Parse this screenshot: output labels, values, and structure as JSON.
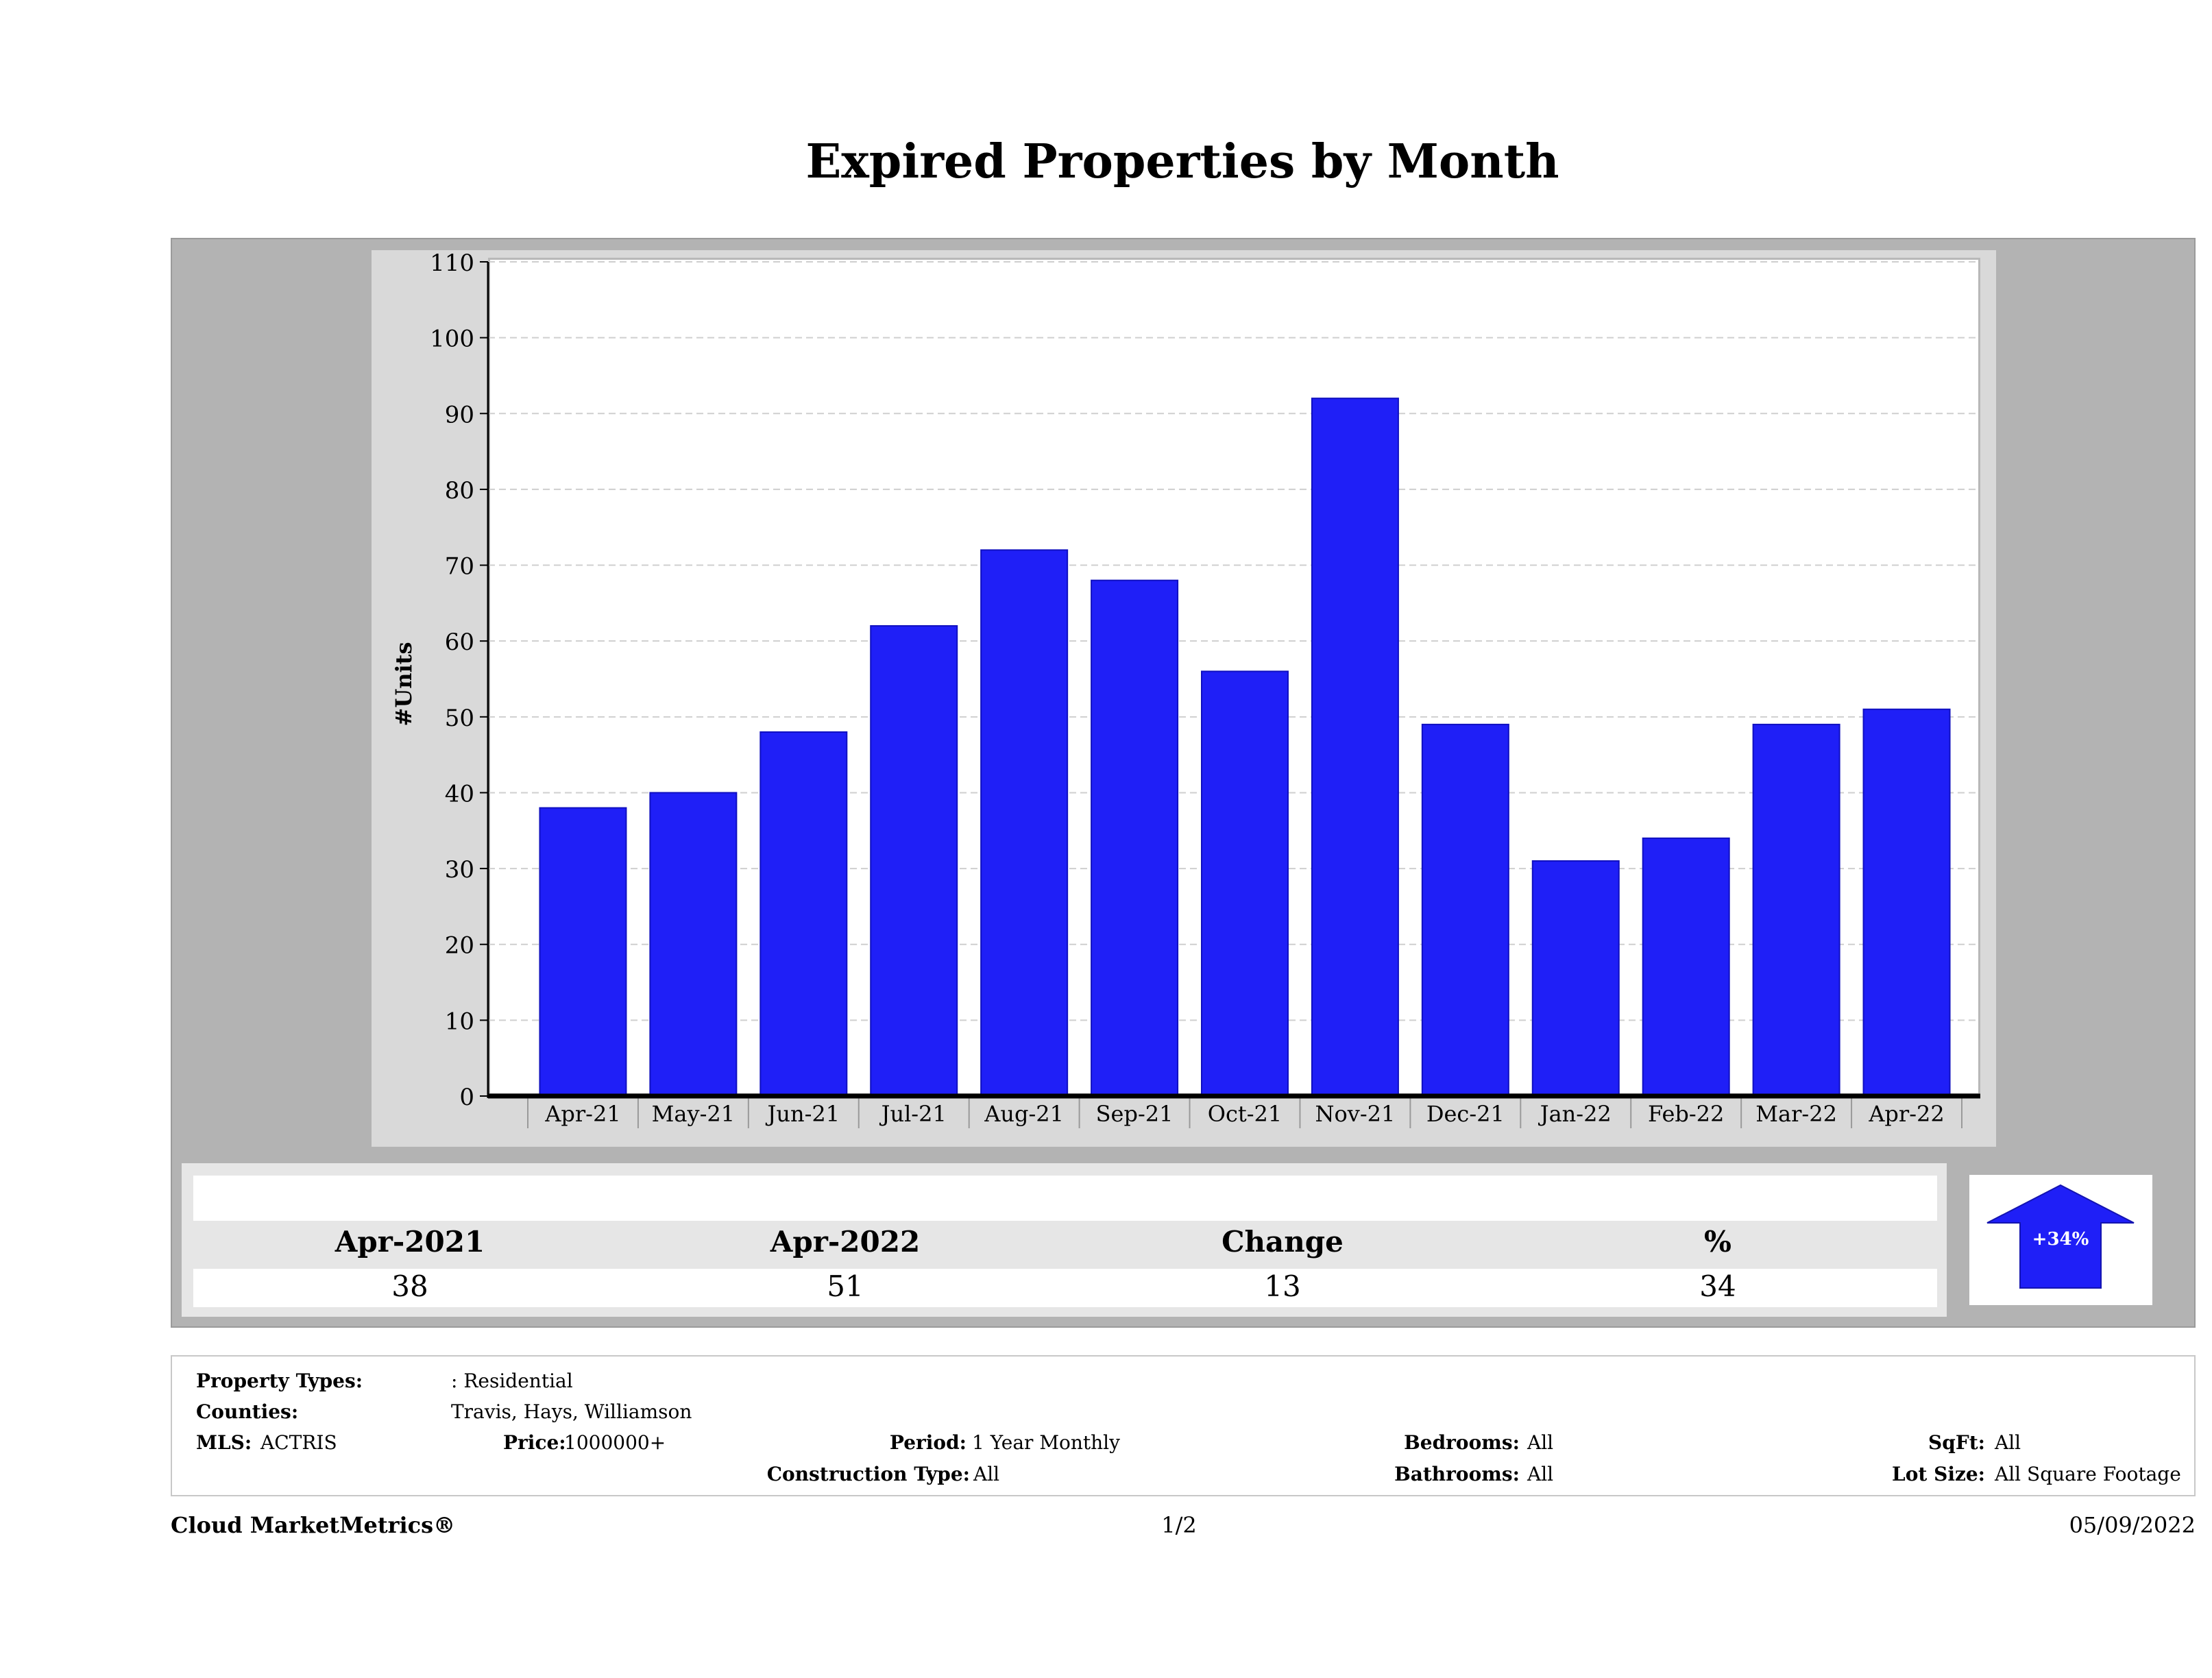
{
  "chart_data": {
    "type": "bar",
    "title": "Expired Properties by Month",
    "xlabel": "",
    "ylabel": "#Units",
    "ylim": [
      0,
      110
    ],
    "yticks": [
      0,
      10,
      20,
      30,
      40,
      50,
      60,
      70,
      80,
      90,
      100,
      110
    ],
    "grid": true,
    "categories": [
      "Apr-21",
      "May-21",
      "Jun-21",
      "Jul-21",
      "Aug-21",
      "Sep-21",
      "Oct-21",
      "Nov-21",
      "Dec-21",
      "Jan-22",
      "Feb-22",
      "Mar-22",
      "Apr-22"
    ],
    "values": [
      38,
      40,
      48,
      62,
      72,
      68,
      56,
      92,
      49,
      31,
      34,
      49,
      51
    ],
    "bar_color": "#1f1ff7"
  },
  "summary": {
    "headers": [
      "Apr-2021",
      "Apr-2022",
      "Change",
      "%"
    ],
    "values": [
      "38",
      "51",
      "13",
      "34"
    ],
    "arrow_label": "+34%",
    "arrow_color": "#1f1ff7"
  },
  "info": {
    "property_types_label": "Property Types:",
    "property_types_value": ": Residential",
    "counties_label": "Counties:",
    "counties_value": "Travis, Hays, Williamson",
    "mls_label": "MLS:",
    "mls_value": "ACTRIS",
    "price_label": "Price:",
    "price_value": "1000000+",
    "period_label": "Period:",
    "period_value": "1 Year Monthly",
    "construction_label": "Construction Type:",
    "construction_value": "All",
    "bedrooms_label": "Bedrooms:",
    "bedrooms_value": "All",
    "bathrooms_label": "Bathrooms:",
    "bathrooms_value": "All",
    "sqft_label": "SqFt:",
    "sqft_value": "All",
    "lotsize_label": "Lot Size:",
    "lotsize_value": "All Square Footage"
  },
  "footer": {
    "brand": "Cloud MarketMetrics®",
    "page": "1/2",
    "date": "05/09/2022"
  }
}
